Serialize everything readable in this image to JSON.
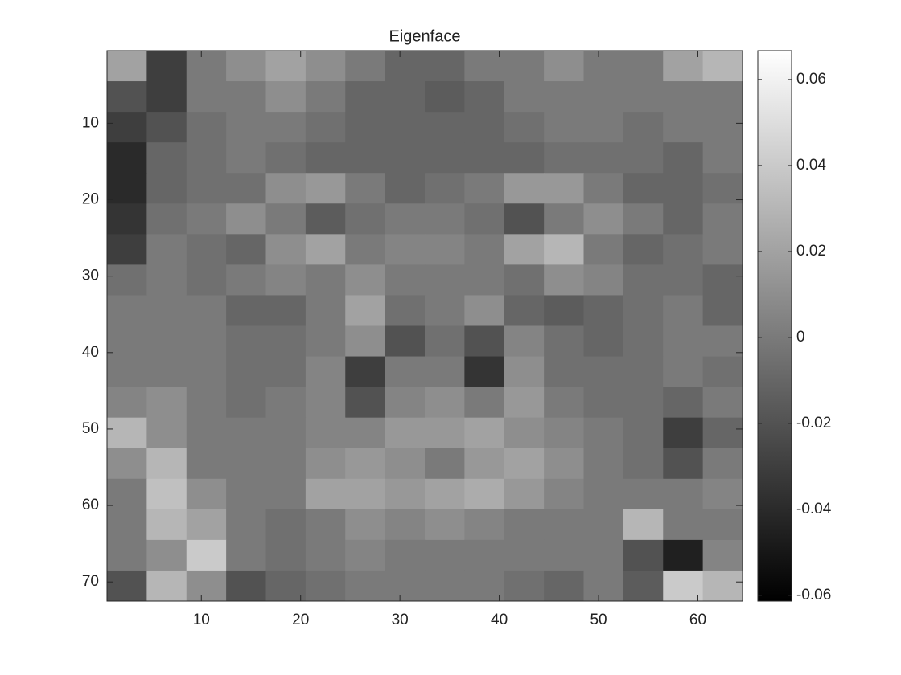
{
  "chart_data": {
    "type": "heatmap",
    "title": "Eigenface",
    "colormap": "gray",
    "xlim": [
      0.5,
      64.5
    ],
    "ylim": [
      0.5,
      72.5
    ],
    "xticks": [
      10,
      20,
      30,
      40,
      50,
      60
    ],
    "yticks": [
      10,
      20,
      30,
      40,
      50,
      60,
      70
    ],
    "clim": [
      -0.0613,
      0.0667
    ],
    "cticks": [
      -0.06,
      -0.04,
      -0.02,
      0,
      0.02,
      0.04,
      0.06
    ],
    "z": [
      [
        0.02,
        -0.03,
        0.0,
        0.01,
        0.02,
        0.01,
        0.0,
        -0.01,
        -0.01,
        0.0,
        0.0,
        0.01,
        0.0,
        0.0,
        0.02,
        0.03
      ],
      [
        -0.02,
        -0.03,
        0.0,
        0.0,
        0.01,
        0.0,
        -0.01,
        -0.01,
        -0.015,
        -0.01,
        0.0,
        0.0,
        0.0,
        0.0,
        0.0,
        0.0
      ],
      [
        -0.03,
        -0.02,
        -0.005,
        0.0,
        0.0,
        -0.005,
        -0.01,
        -0.01,
        -0.01,
        -0.01,
        -0.005,
        0.0,
        0.0,
        -0.005,
        0.0,
        0.0
      ],
      [
        -0.04,
        -0.01,
        -0.005,
        0.0,
        -0.005,
        -0.01,
        -0.01,
        -0.01,
        -0.01,
        -0.01,
        -0.01,
        -0.005,
        -0.005,
        -0.005,
        -0.01,
        0.0
      ],
      [
        -0.04,
        -0.01,
        -0.005,
        -0.005,
        0.01,
        0.015,
        0.0,
        -0.01,
        -0.005,
        0.0,
        0.015,
        0.015,
        0.0,
        -0.01,
        -0.01,
        -0.005
      ],
      [
        -0.035,
        -0.005,
        0.0,
        0.01,
        0.0,
        -0.015,
        -0.005,
        0.0,
        0.0,
        -0.005,
        -0.02,
        0.0,
        0.01,
        0.0,
        -0.01,
        0.0
      ],
      [
        -0.03,
        0.0,
        -0.005,
        -0.01,
        0.01,
        0.02,
        0.0,
        0.005,
        0.005,
        0.0,
        0.02,
        0.03,
        0.0,
        -0.01,
        -0.005,
        0.0
      ],
      [
        -0.005,
        0.0,
        -0.005,
        0.0,
        0.005,
        0.0,
        0.01,
        0.0,
        0.0,
        0.0,
        -0.005,
        0.01,
        0.005,
        -0.005,
        -0.005,
        -0.01
      ],
      [
        0.0,
        0.0,
        0.0,
        -0.01,
        -0.01,
        0.0,
        0.02,
        -0.005,
        0.0,
        0.01,
        -0.01,
        -0.015,
        -0.01,
        -0.005,
        0.0,
        -0.01
      ],
      [
        0.0,
        0.0,
        0.0,
        -0.005,
        -0.005,
        0.0,
        0.01,
        -0.02,
        -0.005,
        -0.02,
        0.005,
        -0.005,
        -0.01,
        -0.005,
        0.0,
        0.0
      ],
      [
        0.0,
        0.0,
        0.0,
        -0.005,
        -0.005,
        0.005,
        -0.03,
        0.0,
        0.0,
        -0.035,
        0.01,
        -0.005,
        -0.005,
        -0.005,
        0.0,
        -0.005
      ],
      [
        0.005,
        0.01,
        0.0,
        -0.005,
        0.0,
        0.005,
        -0.02,
        0.005,
        0.01,
        0.0,
        0.015,
        0.0,
        -0.005,
        -0.005,
        -0.01,
        0.0
      ],
      [
        0.03,
        0.01,
        0.0,
        0.0,
        0.0,
        0.005,
        0.005,
        0.015,
        0.015,
        0.02,
        0.01,
        0.005,
        0.0,
        -0.005,
        -0.03,
        -0.01
      ],
      [
        0.01,
        0.03,
        0.0,
        0.0,
        0.0,
        0.01,
        0.015,
        0.01,
        0.0,
        0.015,
        0.02,
        0.01,
        0.0,
        -0.005,
        -0.02,
        0.0
      ],
      [
        0.0,
        0.035,
        0.01,
        0.0,
        0.0,
        0.02,
        0.02,
        0.015,
        0.02,
        0.025,
        0.015,
        0.005,
        0.0,
        0.0,
        0.0,
        0.005
      ],
      [
        0.0,
        0.03,
        0.02,
        0.0,
        -0.005,
        0.0,
        0.01,
        0.005,
        0.01,
        0.005,
        0.0,
        0.0,
        0.0,
        0.03,
        0.0,
        0.0
      ],
      [
        0.0,
        0.01,
        0.04,
        0.0,
        -0.005,
        0.0,
        0.005,
        0.0,
        0.0,
        0.0,
        0.0,
        0.0,
        0.0,
        -0.02,
        -0.045,
        0.005
      ],
      [
        -0.02,
        0.03,
        0.01,
        -0.02,
        -0.01,
        -0.005,
        0.0,
        0.0,
        0.0,
        0.0,
        -0.005,
        -0.01,
        0.0,
        -0.015,
        0.04,
        0.03
      ]
    ]
  }
}
